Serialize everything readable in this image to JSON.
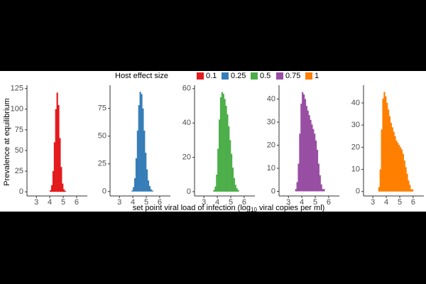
{
  "legend_title": "Host effect size",
  "ylabel": "Prevalence at equilibrium",
  "xlabel": [
    "set point viral load of infection (log",
    "10",
    " viral copies per ml)"
  ],
  "chart_data": [
    {
      "type": "histogram",
      "name": "0.1",
      "color": "#e41a1c",
      "bins": [
        4.0,
        4.1,
        4.2,
        4.3,
        4.4,
        4.5,
        4.6,
        4.7,
        4.8,
        4.9,
        5.0,
        5.1,
        5.2
      ],
      "values": [
        2,
        8,
        25,
        60,
        100,
        120,
        105,
        65,
        30,
        10,
        3,
        1
      ],
      "xlim": [
        2.3,
        6.8
      ],
      "xticks": [
        3,
        4,
        5,
        6
      ],
      "ylim": [
        -5,
        129
      ],
      "yticks": [
        0,
        25,
        50,
        75,
        100,
        125
      ]
    },
    {
      "type": "histogram",
      "name": "0.25",
      "color": "#377eb8",
      "bins": [
        3.9,
        4.0,
        4.1,
        4.2,
        4.3,
        4.4,
        4.5,
        4.6,
        4.7,
        4.8,
        4.9,
        5.0,
        5.1,
        5.2,
        5.3,
        5.4,
        5.5
      ],
      "values": [
        1,
        4,
        12,
        30,
        55,
        78,
        90,
        88,
        75,
        55,
        35,
        20,
        10,
        5,
        2,
        1
      ],
      "xlim": [
        2.3,
        6.8
      ],
      "xticks": [
        3,
        4,
        5,
        6
      ],
      "ylim": [
        -4,
        96
      ],
      "yticks": [
        0,
        25,
        50,
        75
      ]
    },
    {
      "type": "histogram",
      "name": "0.5",
      "color": "#4daf4a",
      "bins": [
        3.7,
        3.8,
        3.9,
        4.0,
        4.1,
        4.2,
        4.3,
        4.4,
        4.5,
        4.6,
        4.7,
        4.8,
        4.9,
        5.0,
        5.1,
        5.2,
        5.3,
        5.4,
        5.5,
        5.6
      ],
      "values": [
        1,
        3,
        10,
        25,
        42,
        55,
        58,
        57,
        54,
        50,
        45,
        38,
        30,
        22,
        14,
        8,
        4,
        2,
        1
      ],
      "xlim": [
        2.3,
        6.8
      ],
      "xticks": [
        3,
        4,
        5,
        6
      ],
      "ylim": [
        -2.5,
        62
      ],
      "yticks": [
        0,
        20,
        40,
        60
      ]
    },
    {
      "type": "histogram",
      "name": "0.75",
      "color": "#984ea3",
      "bins": [
        3.5,
        3.6,
        3.7,
        3.8,
        3.9,
        4.0,
        4.1,
        4.2,
        4.3,
        4.4,
        4.5,
        4.6,
        4.7,
        4.8,
        4.9,
        5.0,
        5.1,
        5.2,
        5.3,
        5.4,
        5.5,
        5.6,
        5.7
      ],
      "values": [
        1,
        4,
        12,
        25,
        38,
        43,
        42,
        40,
        37,
        35,
        33,
        31,
        29,
        27,
        25,
        22,
        18,
        12,
        7,
        3,
        1,
        1
      ],
      "xlim": [
        2.3,
        6.8
      ],
      "xticks": [
        3,
        4,
        5,
        6
      ],
      "ylim": [
        -2,
        46
      ],
      "yticks": [
        0,
        10,
        20,
        30,
        40
      ]
    },
    {
      "type": "histogram",
      "name": "1",
      "color": "#ff7f00",
      "bins": [
        3.4,
        3.5,
        3.6,
        3.7,
        3.8,
        3.9,
        4.0,
        4.1,
        4.2,
        4.3,
        4.4,
        4.5,
        4.6,
        4.7,
        4.8,
        4.9,
        5.0,
        5.1,
        5.2,
        5.3,
        5.4,
        5.5,
        5.6,
        5.7,
        5.8,
        5.9,
        6.0
      ],
      "values": [
        2,
        10,
        28,
        42,
        45,
        43,
        40,
        37,
        34,
        31,
        29,
        27,
        25,
        23,
        22,
        21,
        20,
        19,
        17,
        14,
        11,
        8,
        5,
        3,
        1,
        1
      ],
      "xlim": [
        2.3,
        6.8
      ],
      "xticks": [
        3,
        4,
        5,
        6
      ],
      "ylim": [
        -2,
        48
      ],
      "yticks": [
        0,
        10,
        20,
        30,
        40
      ]
    }
  ]
}
